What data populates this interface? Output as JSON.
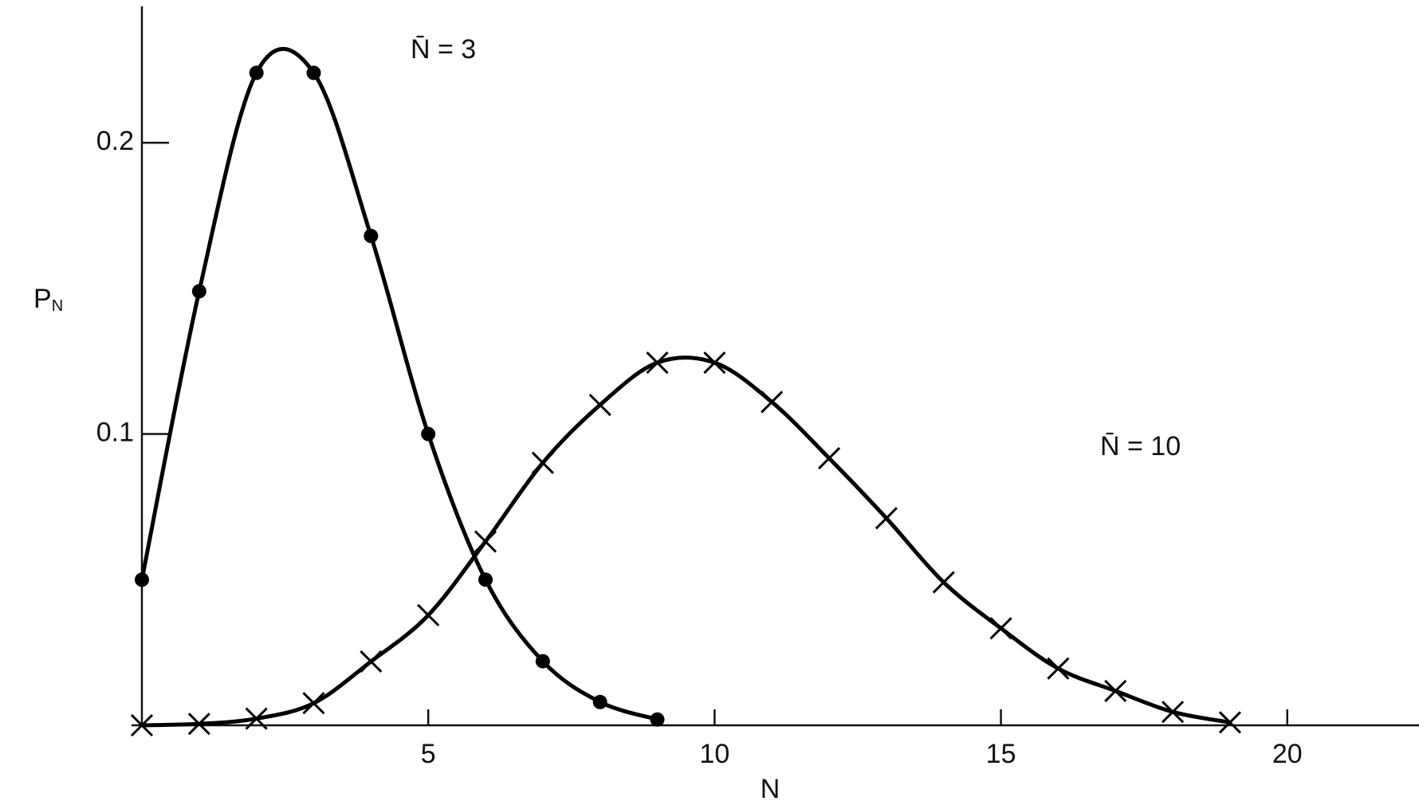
{
  "chart_data": {
    "type": "line",
    "x_label": "N",
    "y_label": "P",
    "y_label_sub": "N",
    "annotations": [
      "N̄ = 3",
      "N̄ = 10"
    ],
    "xlim": [
      0,
      22.3
    ],
    "ylim": [
      0,
      0.246
    ],
    "xticks": [
      5,
      10,
      15,
      20
    ],
    "yticks": [
      0.1,
      0.2
    ],
    "grid": false,
    "series": [
      {
        "name": "N̄ = 3",
        "color": "#000000",
        "marker": "dot",
        "x": [
          0,
          1,
          2,
          3,
          4,
          5,
          6,
          7,
          8,
          9
        ],
        "values": [
          0.05,
          0.149,
          0.224,
          0.224,
          0.168,
          0.1,
          0.05,
          0.022,
          0.008,
          0.002
        ]
      },
      {
        "name": "N̄ = 10",
        "color": "#000000",
        "marker": "cross",
        "x": [
          0,
          1,
          2,
          3,
          4,
          5,
          6,
          7,
          8,
          9,
          10,
          11,
          12,
          13,
          14,
          15,
          16,
          17,
          18,
          19
        ],
        "values": [
          0,
          0.0005,
          0.0023,
          0.0076,
          0.0219,
          0.0378,
          0.0631,
          0.0901,
          0.11,
          0.1245,
          0.1245,
          0.111,
          0.0917,
          0.0711,
          0.0491,
          0.0333,
          0.0195,
          0.0118,
          0.0046,
          0.001
        ]
      }
    ]
  }
}
